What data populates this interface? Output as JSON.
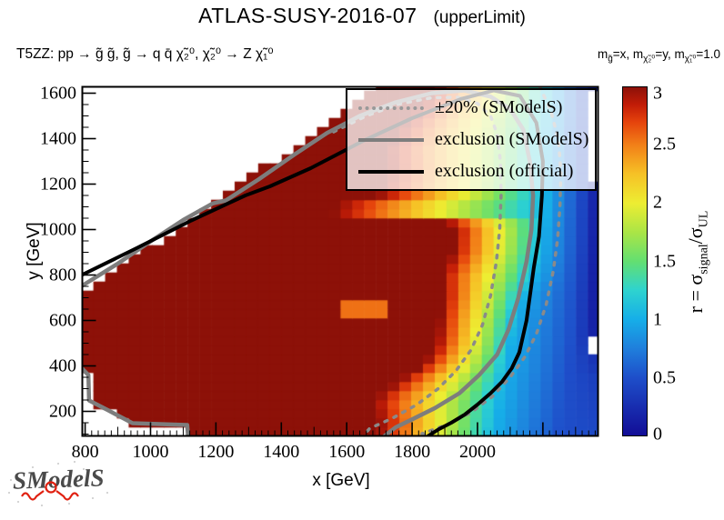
{
  "title": {
    "main": "ATLAS-SUSY-2016-07",
    "suffix": "(upperLimit)"
  },
  "subtitle": "T5ZZ: pp → g̃ g̃, g̃ → q q̄ χ̃₂⁰, χ̃₂⁰ → Z χ̃₁⁰",
  "mass_note_segments": [
    {
      "t": "m"
    },
    {
      "t": "g̃",
      "sub": true
    },
    {
      "t": "=x, m"
    },
    {
      "t": "χ̃₂⁰",
      "sub": true
    },
    {
      "t": "=y, m"
    },
    {
      "t": "χ̃₁⁰",
      "sub": true
    },
    {
      "t": "=1.0"
    }
  ],
  "legend": {
    "items": [
      {
        "label": "±20% (SModelS)",
        "style": "dotted",
        "color": "#999999"
      },
      {
        "label": "exclusion (SModelS)",
        "style": "solid",
        "color": "#7d7d7d"
      },
      {
        "label": "exclusion (official)",
        "style": "solid",
        "color": "#000000"
      }
    ]
  },
  "axes": {
    "x": {
      "label": "x [GeV]",
      "min": 790,
      "max": 2370,
      "major": [
        800,
        1000,
        1200,
        1400,
        1600,
        1800,
        2000
      ],
      "mid_step": 100,
      "minor_step": 20
    },
    "y": {
      "label": "y [GeV]",
      "min": 90,
      "max": 1630,
      "major": [
        200,
        400,
        600,
        800,
        1000,
        1200,
        1400,
        1600
      ],
      "minor_step": 50
    }
  },
  "colorbar": {
    "min": 0,
    "max": 3,
    "ticks": [
      0,
      0.5,
      1,
      1.5,
      2,
      2.5,
      3
    ],
    "label": {
      "prefix": "r = σ",
      "sub1": "signal",
      "mid": "/σ",
      "sub2": "UL"
    }
  },
  "logo": {
    "text": "SModelS"
  },
  "chart_data": {
    "type": "heatmap",
    "title": "ATLAS-SUSY-2016-07 (upperLimit)",
    "xlabel": "x [GeV]",
    "ylabel": "y [GeV]",
    "zlabel": "r = sigma_signal/sigma_UL",
    "x_range": [
      790,
      2370
    ],
    "y_range": [
      90,
      1630
    ],
    "z_range": [
      0,
      3
    ],
    "cell_size_gev": [
      36,
      40
    ],
    "palette_stops": [
      [
        0.0,
        "#120d96"
      ],
      [
        0.1667,
        "#1e4fca"
      ],
      [
        0.25,
        "#1f7fdc"
      ],
      [
        0.3333,
        "#16aee8"
      ],
      [
        0.4167,
        "#2ed3cf"
      ],
      [
        0.5,
        "#63df71"
      ],
      [
        0.5833,
        "#aae546"
      ],
      [
        0.6667,
        "#eded32"
      ],
      [
        0.75,
        "#f6c226"
      ],
      [
        0.8333,
        "#f28118"
      ],
      [
        0.9,
        "#e5430c"
      ],
      [
        0.95,
        "#c21c07"
      ],
      [
        1.0,
        "#8d1108"
      ]
    ],
    "rows": [
      {
        "y": 90,
        "xmin": 1115,
        "x3": 1690,
        "x1": 2055,
        "x05": 2250,
        "redge": 0.45
      },
      {
        "y": 142,
        "xmin": 1115,
        "x3": 1703,
        "x1": 2060,
        "x05": 2255,
        "redge": 0.44
      },
      {
        "y": 148,
        "xmin": 940,
        "x3": 1700,
        "x1": 2061,
        "x05": 2256,
        "redge": 0.43
      },
      {
        "y": 250,
        "xmin": 815,
        "x3": 1680,
        "x1": 2075,
        "x05": 2265,
        "redge": 0.4
      },
      {
        "y": 358,
        "xmin": 815,
        "x3": 1780,
        "x1": 2088,
        "x05": 2275,
        "redge": 0.36
      },
      {
        "y": 368,
        "xmin": 790,
        "x3": 1800,
        "x1": 2090,
        "x05": 2276,
        "redge": 0.33
      },
      {
        "y": 450,
        "xmin": 790,
        "x3": 1860,
        "x1": 2098,
        "x05": 2282,
        "redge": 0.25
      },
      {
        "y": 520,
        "xmin": 790,
        "x3": 1878,
        "x1": 2108,
        "x05": 2288,
        "redge": 0.12
      },
      {
        "y": 600,
        "xmin": 790,
        "x3": 1885,
        "x1": 2118,
        "x05": 2292,
        "redge": 0.09
      },
      {
        "y": 715,
        "xmin": 790,
        "x3": 1895,
        "x1": 2145,
        "x05": 2296,
        "redge": 0.08
      },
      {
        "y": 800,
        "xmin": 875,
        "x3": 1890,
        "x1": 2178,
        "x05": 2300,
        "redge": 0.08
      },
      {
        "y": 900,
        "xmin": 975,
        "x3": 1925,
        "x1": 2198,
        "x05": 2305,
        "redge": 0.09
      },
      {
        "y": 1000,
        "xmin": 1075,
        "x3": 1930,
        "x1": 2205,
        "x05": 2308,
        "redge": 0.1
      },
      {
        "y": 1045,
        "xmin": 1120,
        "x3": 1895,
        "x1": 2210,
        "x05": 2308,
        "redge": 0.1
      },
      {
        "y": 1062,
        "xmin": 1137,
        "x3": 1560,
        "x1": 2212,
        "x05": 2309,
        "redge": 0.11
      },
      {
        "y": 1105,
        "xmin": 1180,
        "x3": 1560,
        "x1": 2214,
        "x05": 2309,
        "redge": 0.11
      },
      {
        "y": 1150,
        "xmin": 1225,
        "x3": 1695,
        "x1": 2216,
        "x05": 2310,
        "redge": 0.12
      },
      {
        "y": 1250,
        "xmin": 1325,
        "x3": 1725,
        "x1": 2220,
        "x05": 2310,
        "redge": 0.12
      },
      {
        "y": 1350,
        "xmin": 1425,
        "x3": 1720,
        "x1": 2226,
        "x05": 2310,
        "redge": 0.13
      },
      {
        "y": 1450,
        "xmin": 1525,
        "x3": 1760,
        "x1": 2230,
        "x05": 2310,
        "redge": 0.14
      },
      {
        "y": 1550,
        "xmin": 1625,
        "x3": 1830,
        "x1": 2235,
        "x05": 2310,
        "redge": 0.15
      },
      {
        "y": 1630,
        "xmin": 1705,
        "x3": 1865,
        "x1": 2240,
        "x05": 2310,
        "redge": 0.15
      }
    ],
    "anomalies": [
      {
        "x0": 1590,
        "y0": 595,
        "x1": 1725,
        "y1": 690,
        "r": 2.55
      }
    ],
    "missing": [
      {
        "x0": 2338,
        "x1": 2370,
        "y0": 1212,
        "y1": 1630
      },
      {
        "x0": 2338,
        "x1": 2370,
        "y0": 452,
        "y1": 516
      }
    ],
    "contours": {
      "official": [
        [
          790,
          800
        ],
        [
          960,
          920
        ],
        [
          1125,
          1040
        ],
        [
          1290,
          1150
        ],
        [
          1365,
          1190
        ],
        [
          1490,
          1270
        ],
        [
          1650,
          1390
        ],
        [
          1800,
          1490
        ],
        [
          1950,
          1575
        ],
        [
          2050,
          1612
        ],
        [
          2130,
          1588
        ],
        [
          2180,
          1470
        ],
        [
          2200,
          1300
        ],
        [
          2197,
          1150
        ],
        [
          2188,
          970
        ],
        [
          2172,
          830
        ],
        [
          2150,
          600
        ],
        [
          2128,
          460
        ],
        [
          2105,
          390
        ],
        [
          2075,
          330
        ],
        [
          2040,
          280
        ],
        [
          2000,
          230
        ],
        [
          1960,
          185
        ],
        [
          1920,
          150
        ],
        [
          1880,
          120
        ],
        [
          1845,
          88
        ]
      ],
      "smodels": [
        [
          790,
          752
        ],
        [
          900,
          850
        ],
        [
          1000,
          948
        ],
        [
          1100,
          1042
        ],
        [
          1190,
          1115
        ],
        [
          1230,
          1128
        ],
        [
          1330,
          1220
        ],
        [
          1440,
          1330
        ],
        [
          1540,
          1425
        ],
        [
          1640,
          1500
        ],
        [
          1750,
          1560
        ],
        [
          1860,
          1600
        ],
        [
          1960,
          1612
        ],
        [
          2040,
          1585
        ],
        [
          2100,
          1530
        ],
        [
          2140,
          1440
        ],
        [
          2160,
          1300
        ],
        [
          2170,
          1150
        ],
        [
          2165,
          1000
        ],
        [
          2150,
          860
        ],
        [
          2125,
          700
        ],
        [
          2095,
          560
        ],
        [
          2060,
          450
        ],
        [
          2005,
          360
        ],
        [
          1945,
          280
        ],
        [
          1870,
          215
        ],
        [
          1800,
          165
        ],
        [
          1750,
          130
        ],
        [
          1712,
          88
        ]
      ],
      "smodels_low": [
        [
          1115,
          88
        ],
        [
          1112,
          140
        ],
        [
          945,
          148
        ],
        [
          870,
          205
        ],
        [
          812,
          248
        ],
        [
          810,
          360
        ],
        [
          788,
          392
        ]
      ],
      "band_upper": [
        [
          1560,
          1430
        ],
        [
          1660,
          1500
        ],
        [
          1760,
          1552
        ],
        [
          1860,
          1580
        ],
        [
          1940,
          1582
        ],
        [
          2000,
          1555
        ],
        [
          2040,
          1500
        ],
        [
          2060,
          1420
        ],
        [
          2070,
          1300
        ],
        [
          2072,
          1150
        ],
        [
          2068,
          1000
        ],
        [
          2058,
          860
        ],
        [
          2040,
          710
        ],
        [
          2015,
          580
        ],
        [
          1980,
          470
        ],
        [
          1935,
          380
        ],
        [
          1880,
          300
        ],
        [
          1815,
          230
        ],
        [
          1740,
          170
        ],
        [
          1670,
          125
        ],
        [
          1648,
          88
        ]
      ],
      "band_lower": [
        [
          2190,
          1630
        ],
        [
          2225,
          1520
        ],
        [
          2248,
          1390
        ],
        [
          2255,
          1250
        ],
        [
          2252,
          1100
        ],
        [
          2245,
          960
        ],
        [
          2232,
          820
        ],
        [
          2210,
          670
        ],
        [
          2180,
          540
        ],
        [
          2145,
          440
        ],
        [
          2100,
          350
        ],
        [
          2045,
          265
        ],
        [
          1980,
          195
        ],
        [
          1905,
          140
        ],
        [
          1830,
          102
        ],
        [
          2065,
          0
        ],
        [
          2065,
          88
        ]
      ]
    }
  }
}
